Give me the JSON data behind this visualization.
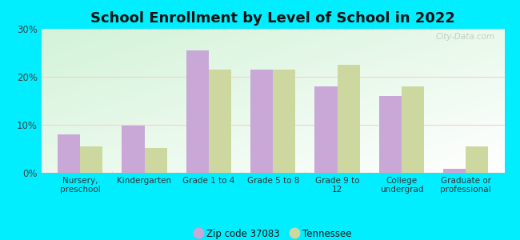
{
  "title": "School Enrollment by Level of School in 2022",
  "categories": [
    "Nursery,\npreschool",
    "Kindergarten",
    "Grade 1 to 4",
    "Grade 5 to 8",
    "Grade 9 to\n12",
    "College\nundergrad",
    "Graduate or\nprofessional"
  ],
  "zip_values": [
    8.0,
    9.8,
    25.5,
    21.5,
    18.0,
    16.0,
    0.8
  ],
  "tn_values": [
    5.5,
    5.2,
    21.5,
    21.5,
    22.5,
    18.0,
    5.5
  ],
  "zip_color": "#c9a8d8",
  "tn_color": "#cdd8a0",
  "ylim": [
    0,
    30
  ],
  "yticks": [
    0,
    10,
    20,
    30
  ],
  "ytick_labels": [
    "0%",
    "10%",
    "20%",
    "30%"
  ],
  "background_outer": "#00eeff",
  "legend_zip_label": "Zip code 37083",
  "legend_tn_label": "Tennessee",
  "bar_width": 0.35,
  "title_fontsize": 13,
  "watermark": "City-Data.com"
}
